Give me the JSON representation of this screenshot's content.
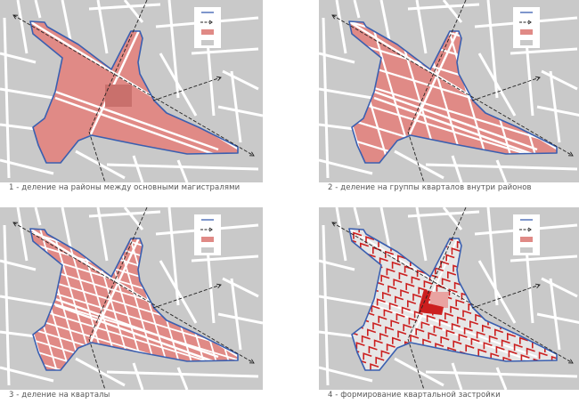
{
  "colors": {
    "background_block": "#c9c9c9",
    "road": "#ffffff",
    "district_fill": "#e08a86",
    "boundary": "#3a5fb0",
    "arrow": "#222222",
    "building": "#cc1f1f",
    "building_light": "#e9a3a1",
    "stage4_fill": "#e6e6e6"
  },
  "legend": [
    {
      "symbol": "blue-line"
    },
    {
      "symbol": "dashed-arrow"
    },
    {
      "symbol": "red-fill"
    },
    {
      "symbol": "grey-fill"
    }
  ],
  "panels": [
    {
      "stage": 1,
      "caption": "1 - деление на районы между основными магистралями"
    },
    {
      "stage": 2,
      "caption": "2 - деление на группы кварталов внутри районов"
    },
    {
      "stage": 3,
      "caption": "3 - деление на кварталы"
    },
    {
      "stage": 4,
      "caption": "4 - формирование квартальной застройки"
    }
  ]
}
